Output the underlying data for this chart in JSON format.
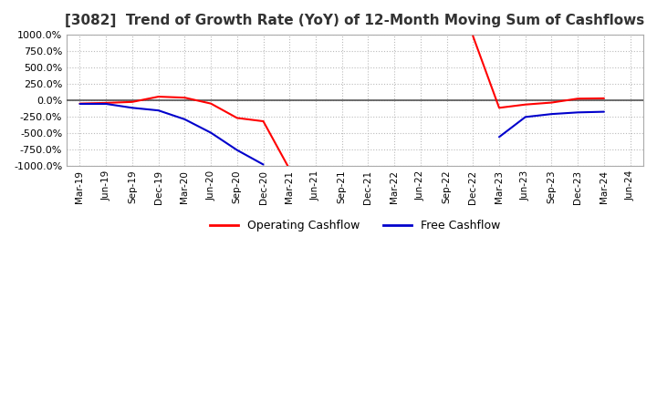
{
  "title": "[3082]  Trend of Growth Rate (YoY) of 12-Month Moving Sum of Cashflows",
  "title_fontsize": 11,
  "ylim": [
    -1000,
    1000
  ],
  "yticks": [
    -1000,
    -750,
    -500,
    -250,
    0,
    250,
    500,
    750,
    1000
  ],
  "background_color": "#ffffff",
  "plot_bg_color": "#ffffff",
  "grid_color": "#bbbbbb",
  "zero_line_color": "#555555",
  "legend_labels": [
    "Operating Cashflow",
    "Free Cashflow"
  ],
  "legend_colors": [
    "#ff0000",
    "#0000cc"
  ],
  "x_labels": [
    "Mar-19",
    "Jun-19",
    "Sep-19",
    "Dec-19",
    "Mar-20",
    "Jun-20",
    "Sep-20",
    "Dec-20",
    "Mar-21",
    "Jun-21",
    "Sep-21",
    "Dec-21",
    "Mar-22",
    "Jun-22",
    "Sep-22",
    "Dec-22",
    "Mar-23",
    "Jun-23",
    "Sep-23",
    "Dec-23",
    "Mar-24",
    "Jun-24"
  ],
  "op_y": [
    -50,
    -40,
    -25,
    55,
    40,
    -50,
    -270,
    -320,
    -1050,
    null,
    null,
    null,
    null,
    null,
    null,
    980,
    -115,
    -65,
    -35,
    25,
    30,
    null
  ],
  "fr_y": [
    -55,
    -55,
    -115,
    -155,
    -290,
    -495,
    -760,
    -980,
    null,
    null,
    null,
    null,
    null,
    null,
    null,
    null,
    -560,
    -255,
    -210,
    -185,
    -175,
    null
  ]
}
